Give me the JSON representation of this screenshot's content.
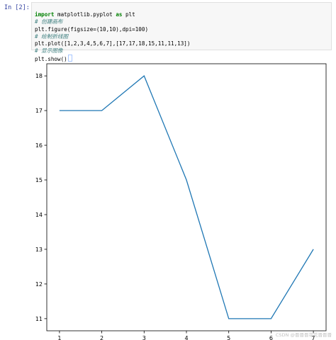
{
  "cell": {
    "prompt": "In [2]:",
    "code_lines": [
      {
        "kind": "import",
        "kw1": "import",
        "mod": " matplotlib.pyplot ",
        "kw2": "as",
        "alias": " plt"
      },
      {
        "kind": "comment",
        "text": "# 创建画布"
      },
      {
        "kind": "call",
        "text": "plt.figure(figsize=(10,10),dpi=100)"
      },
      {
        "kind": "comment",
        "text": "# 绘制折线图"
      },
      {
        "kind": "call",
        "text": "plt.plot([1,2,3,4,5,6,7],[17,17,18,15,11,11,13])"
      },
      {
        "kind": "comment",
        "text": "# 显示图像"
      },
      {
        "kind": "call",
        "text": "plt.show()"
      }
    ]
  },
  "chart_data": {
    "type": "line",
    "x": [
      1,
      2,
      3,
      4,
      5,
      6,
      7
    ],
    "series": [
      {
        "values": [
          17,
          17,
          18,
          15,
          11,
          11,
          13
        ],
        "color": "#1f77b4"
      }
    ],
    "xticks": [
      "1",
      "2",
      "3",
      "4",
      "5",
      "6",
      "7"
    ],
    "yticks": [
      "11",
      "12",
      "13",
      "14",
      "15",
      "16",
      "17",
      "18"
    ],
    "xlim": [
      0.7,
      7.3
    ],
    "ylim": [
      10.65,
      18.35
    ],
    "grid": false
  },
  "watermark": "CSDN @晋晋晋花花晋晋晋"
}
